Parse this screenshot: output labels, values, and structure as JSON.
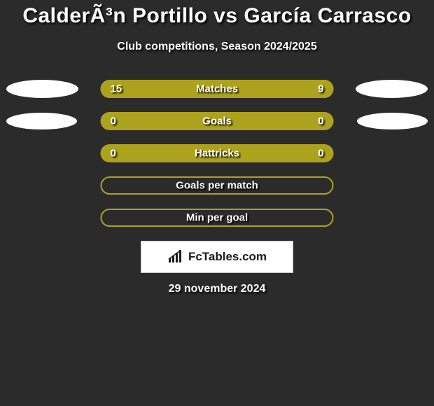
{
  "title": "CalderÃ³n Portillo vs García Carrasco",
  "subtitle": "Club competitions, Season 2024/2025",
  "date": "29 november 2024",
  "brand": "FcTables.com",
  "bar_color": "#aca21d",
  "background_color": "#2b2b2b",
  "badge_color": "#ffffff",
  "rows": [
    {
      "label": "Matches",
      "left": "15",
      "right": "9",
      "left_pct": 62.5,
      "right_pct": 37.5,
      "has_values": true,
      "badge": "big",
      "filled": true
    },
    {
      "label": "Goals",
      "left": "0",
      "right": "0",
      "left_pct": 0,
      "right_pct": 0,
      "has_values": true,
      "badge": "small",
      "filled": true
    },
    {
      "label": "Hattricks",
      "left": "0",
      "right": "0",
      "left_pct": 0,
      "right_pct": 0,
      "has_values": true,
      "badge": "none",
      "filled": true
    },
    {
      "label": "Goals per match",
      "left": "",
      "right": "",
      "left_pct": 0,
      "right_pct": 0,
      "has_values": false,
      "badge": "none",
      "filled": false
    },
    {
      "label": "Min per goal",
      "left": "",
      "right": "",
      "left_pct": 0,
      "right_pct": 0,
      "has_values": false,
      "badge": "none",
      "filled": false
    }
  ]
}
